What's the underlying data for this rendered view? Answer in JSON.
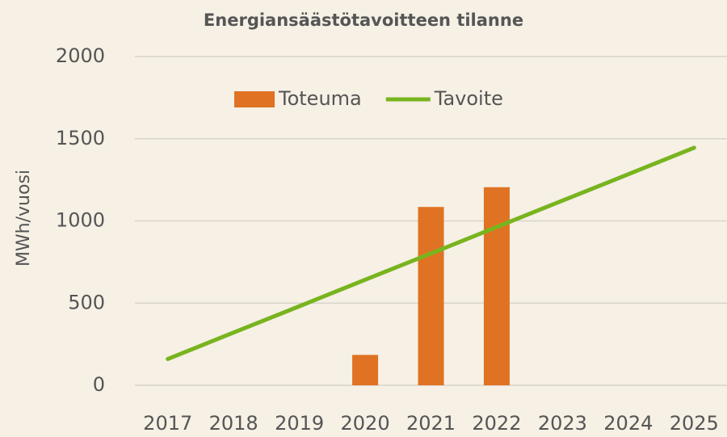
{
  "chart_data": {
    "type": "bar",
    "title": "Energiansäästötavoitteen tilanne",
    "y_label": "MWh/vuosi",
    "categories": [
      "2017",
      "2018",
      "2019",
      "2020",
      "2021",
      "2022",
      "2023",
      "2024",
      "2025"
    ],
    "series": [
      {
        "name": "Toteuma",
        "type": "bar",
        "color": "#e07224",
        "values": [
          null,
          null,
          null,
          185,
          1085,
          1205,
          null,
          null,
          null
        ]
      },
      {
        "name": "Tavoite",
        "type": "line",
        "color": "#78b41e",
        "values": [
          160,
          321,
          481,
          642,
          802,
          963,
          1124,
          1284,
          1445
        ]
      }
    ],
    "ylim": [
      0,
      2000
    ],
    "yticks": [
      0,
      500,
      1000,
      1500,
      2000
    ],
    "grid": true,
    "legend": "top"
  }
}
